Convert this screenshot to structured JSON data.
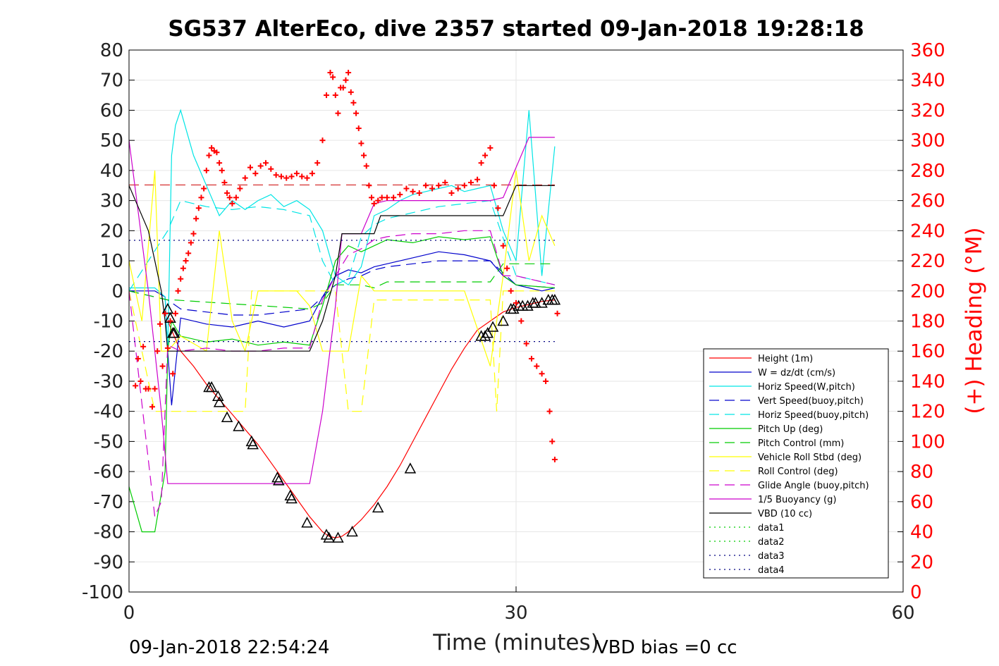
{
  "chart_data": {
    "type": "line",
    "title": "SG537 AlterEco, dive 2357 started 09-Jan-2018 19:28:18",
    "xlabel": "Time (minutes)",
    "ylabel": "",
    "ylabel_right": "(+) Heading (°M)",
    "xlim": [
      0,
      60
    ],
    "ylim": [
      -100,
      80
    ],
    "ylim_right": [
      0,
      360
    ],
    "xticks": [
      "0",
      "30",
      "60"
    ],
    "yticks": [
      "80",
      "70",
      "60",
      "50",
      "40",
      "30",
      "20",
      "10",
      "0",
      "-10",
      "-20",
      "-30",
      "-40",
      "-50",
      "-60",
      "-70",
      "-80",
      "-90",
      "-100"
    ],
    "yticks_right": [
      "360",
      "340",
      "320",
      "300",
      "280",
      "260",
      "240",
      "220",
      "200",
      "180",
      "160",
      "140",
      "120",
      "100",
      "80",
      "60",
      "40",
      "20",
      "0"
    ],
    "grid": true,
    "legend_position": "lower-right",
    "footer_left": "09-Jan-2018 22:54:24",
    "footer_right": "VBD bias =0 cc",
    "colors": {
      "height": "#ff0000",
      "w": "#0000cc",
      "horiz_speed": "#00e5e5",
      "pitch": "#00cc00",
      "roll": "#ffff00",
      "glide": "#cc00cc",
      "buoyancy": "#cc00cc",
      "vbd": "#000000",
      "heading": "#ff0000"
    },
    "series": [
      {
        "name": "Height (1m)",
        "color": "#ff0000",
        "dash": "solid",
        "x": [
          3.0,
          3.5,
          4,
          5,
          6,
          7,
          8,
          9,
          10,
          11,
          12,
          13,
          14,
          15,
          15.5,
          16,
          16.5,
          17,
          18,
          19,
          20,
          21,
          22,
          23,
          24,
          25,
          26,
          27,
          28,
          29,
          30,
          31,
          32,
          33
        ],
        "y": [
          -10,
          -15,
          -20,
          -25,
          -31,
          -36,
          -41,
          -46,
          -51,
          -57,
          -63,
          -69,
          -75,
          -80,
          -81.5,
          -82,
          -81.5,
          -80,
          -76,
          -71,
          -65,
          -58,
          -50,
          -42,
          -34,
          -26,
          -19,
          -13,
          -10,
          -7,
          -5.5,
          -4.5,
          -3.5,
          -3
        ]
      },
      {
        "name": "W = dz/dt (cm/s)",
        "color": "#0000cc",
        "dash": "solid",
        "x": [
          0,
          2,
          2.8,
          3,
          3.3,
          4,
          6,
          8,
          10,
          12,
          14,
          15,
          16,
          17,
          18,
          19,
          20,
          22,
          24,
          26,
          28,
          29,
          30,
          31,
          32,
          33
        ],
        "y": [
          0,
          0,
          -2,
          -20,
          -38,
          -9,
          -11,
          -12,
          -10,
          -12,
          -10,
          -2,
          5,
          7,
          6,
          8,
          9,
          11,
          13,
          12,
          10,
          5,
          2,
          1,
          0,
          1
        ]
      },
      {
        "name": "Horiz Speed(W,pitch)",
        "color": "#00e5e5",
        "dash": "solid",
        "x": [
          0,
          2,
          2.8,
          3,
          3.3,
          3.6,
          4,
          5,
          6,
          7,
          8,
          9,
          10,
          11,
          12,
          13,
          14,
          15,
          16,
          17,
          18,
          19,
          20,
          21,
          22,
          23,
          24,
          25,
          26,
          27,
          28,
          29,
          30,
          31,
          32,
          33
        ],
        "y": [
          1,
          1,
          -2,
          -20,
          45,
          55,
          60,
          45,
          35,
          25,
          30,
          27,
          30,
          32,
          28,
          30,
          27,
          20,
          5,
          2,
          8,
          25,
          27,
          30,
          32,
          33,
          34,
          35,
          33,
          34,
          35,
          20,
          10,
          60,
          5,
          48
        ]
      },
      {
        "name": "Vert Speed(buoy,pitch)",
        "color": "#0000cc",
        "dash": "dashed",
        "x": [
          0,
          3,
          4,
          6,
          8,
          10,
          12,
          14,
          15,
          16,
          17,
          18,
          19,
          20,
          22,
          24,
          26,
          28,
          30,
          33
        ],
        "y": [
          0,
          -3,
          -6,
          -7,
          -8,
          -8,
          -7,
          -6,
          -2,
          2,
          4,
          5,
          7,
          8,
          9,
          10,
          10,
          10,
          2,
          1
        ]
      },
      {
        "name": "Horiz Speed(buoy,pitch)",
        "color": "#00e5e5",
        "dash": "dashed",
        "x": [
          0,
          3,
          4,
          6,
          8,
          10,
          12,
          14,
          15,
          16,
          17,
          18,
          19,
          20,
          22,
          24,
          26,
          28,
          30,
          33
        ],
        "y": [
          0,
          20,
          30,
          28,
          27,
          28,
          27,
          25,
          10,
          2,
          4,
          18,
          22,
          24,
          26,
          28,
          29,
          30,
          5,
          2
        ]
      },
      {
        "name": "Pitch Up (deg)",
        "color": "#00cc00",
        "dash": "solid",
        "x": [
          0,
          1,
          2,
          2.8,
          3,
          3.3,
          4,
          6,
          8,
          10,
          12,
          14,
          15,
          16,
          17,
          18,
          19,
          20,
          22,
          24,
          26,
          28,
          29,
          30,
          33
        ],
        "y": [
          -65,
          -80,
          -80,
          -60,
          -20,
          -10,
          -15,
          -17,
          -16,
          -18,
          -17,
          -18,
          -5,
          10,
          15,
          13,
          15,
          17,
          16,
          18,
          17,
          18,
          5,
          2,
          1
        ]
      },
      {
        "name": "Pitch Control (mm)",
        "color": "#00cc00",
        "dash": "dashed",
        "x": [
          0,
          3,
          3.5,
          14,
          15,
          16,
          18,
          19,
          20,
          28,
          29,
          30,
          33
        ],
        "y": [
          0,
          -3,
          -3,
          -6,
          -4,
          2,
          2,
          1,
          3,
          3,
          9,
          9,
          9
        ]
      },
      {
        "name": "Vehicle Roll Stbd (deg)",
        "color": "#ffff00",
        "dash": "solid",
        "x": [
          0,
          1,
          2,
          2.5,
          3,
          4,
          6,
          7,
          8,
          9,
          10,
          11,
          12,
          13,
          14,
          15,
          16,
          17,
          18,
          19,
          20,
          22,
          24,
          26,
          28,
          29,
          30,
          31,
          32,
          33
        ],
        "y": [
          10,
          -10,
          40,
          -20,
          -20,
          -15,
          -20,
          20,
          -10,
          -20,
          0,
          0,
          0,
          0,
          -5,
          -20,
          -20,
          -20,
          5,
          0,
          0,
          0,
          0,
          0,
          -25,
          5,
          40,
          10,
          25,
          15
        ]
      },
      {
        "name": "Roll Control (deg)",
        "color": "#ffff00",
        "dash": "dashed",
        "x": [
          0,
          2,
          3,
          4,
          8,
          9,
          9.5,
          10,
          14,
          16,
          17,
          17.5,
          18,
          19,
          28,
          28.5,
          29,
          30,
          33
        ],
        "y": [
          0,
          -40,
          -40,
          -40,
          -40,
          -40,
          0,
          0,
          0,
          0,
          -40,
          -40,
          -40,
          -3,
          -3,
          -40,
          0,
          0,
          0
        ]
      },
      {
        "name": "Glide Angle (buoy,pitch)",
        "color": "#cc00cc",
        "dash": "dashed",
        "x": [
          0,
          2,
          2.5,
          3,
          4,
          6,
          8,
          10,
          12,
          14,
          15,
          16,
          17,
          18,
          19,
          20,
          22,
          24,
          26,
          28,
          29,
          30,
          33
        ],
        "y": [
          0,
          -75,
          -70,
          -18,
          -20,
          -19,
          -20,
          -20,
          -19,
          -19,
          -3,
          5,
          12,
          14,
          17,
          18,
          19,
          19,
          20,
          20,
          5,
          5,
          2
        ]
      },
      {
        "name": "1/5 Buoyancy (g)",
        "color": "#cc00cc",
        "dash": "solid",
        "x": [
          0,
          1.5,
          2.5,
          3.0,
          13.5,
          14,
          15,
          16,
          16.5,
          18,
          19,
          20,
          28,
          29,
          30,
          31,
          33
        ],
        "y": [
          50,
          0,
          -40,
          -64,
          -64,
          -64,
          -40,
          -5,
          19,
          19,
          29,
          30,
          30,
          31,
          41,
          51,
          51
        ]
      },
      {
        "name": "VBD (10 cc)",
        "color": "#000000",
        "dash": "solid",
        "x": [
          0,
          1.5,
          2.5,
          2.8,
          3.0,
          14,
          15,
          16,
          16.5,
          18,
          19,
          19.5,
          20,
          28,
          29,
          30,
          33
        ],
        "y": [
          35,
          20,
          0,
          -10,
          -20,
          -20,
          -10,
          5,
          19,
          19,
          19,
          25,
          25,
          25,
          25,
          35,
          35
        ]
      },
      {
        "name": "data1",
        "color": "#00cc00",
        "dash": "dotted",
        "x": [],
        "y": []
      },
      {
        "name": "data2",
        "color": "#00cc00",
        "dash": "dotted",
        "x": [],
        "y": []
      },
      {
        "name": "data3",
        "color": "#000080",
        "dash": "dotted",
        "x": [
          0,
          33
        ],
        "y": [
          16.8,
          16.8
        ]
      },
      {
        "name": "data4",
        "color": "#000080",
        "dash": "dotted",
        "x": [
          0,
          33
        ],
        "y": [
          -16.8,
          -16.8
        ]
      }
    ],
    "reference_lines": [
      {
        "y": 35.2,
        "color": "#cc0000",
        "dash": "dashed",
        "x": [
          0,
          33
        ]
      }
    ],
    "triangle_markers": {
      "x": [
        3.0,
        3.2,
        3.4,
        3.5,
        6.2,
        6.4,
        6.9,
        7.0,
        7.6,
        8.5,
        9.5,
        9.6,
        11.5,
        11.6,
        12.5,
        12.6,
        13.8,
        15.3,
        15.5,
        16.2,
        17.3,
        19.3,
        21.8,
        27.3,
        27.6,
        27.8,
        28.2,
        29.0,
        29.6,
        29.8,
        30.2,
        30.5,
        30.9,
        31.3,
        31.5,
        32.0,
        32.5,
        32.8,
        33.0
      ],
      "y": [
        -6,
        -9,
        -14,
        -14,
        -32,
        -32,
        -35,
        -37,
        -42,
        -45,
        -50,
        -51,
        -62,
        -63,
        -68,
        -69,
        -77,
        -81,
        -82,
        -82,
        -80,
        -72,
        -59,
        -15,
        -15,
        -14,
        -12,
        -10,
        -6,
        -6,
        -5,
        -5,
        -5,
        -4,
        -4,
        -4,
        -3,
        -3,
        -3
      ]
    },
    "heading_points_deg": {
      "x": [
        0.5,
        0.7,
        0.9,
        1.1,
        1.3,
        1.5,
        1.8,
        2.0,
        2.2,
        2.4,
        2.6,
        2.8,
        3.0,
        3.2,
        3.4,
        3.6,
        3.8,
        4.0,
        4.2,
        4.4,
        4.6,
        4.8,
        5.0,
        5.2,
        5.4,
        5.6,
        5.8,
        6.0,
        6.2,
        6.4,
        6.6,
        6.8,
        7.0,
        7.2,
        7.4,
        7.6,
        7.8,
        8.0,
        8.3,
        8.6,
        9.0,
        9.4,
        9.8,
        10.2,
        10.6,
        11.0,
        11.4,
        11.8,
        12.2,
        12.6,
        13.0,
        13.4,
        13.8,
        14.2,
        14.6,
        15.0,
        15.3,
        15.6,
        15.8,
        16.0,
        16.2,
        16.4,
        16.6,
        16.8,
        17.0,
        17.2,
        17.4,
        17.6,
        17.8,
        18.0,
        18.2,
        18.4,
        18.6,
        18.8,
        19.0,
        19.3,
        19.6,
        20.0,
        20.5,
        21.0,
        21.5,
        22.0,
        22.5,
        23.0,
        23.5,
        24.0,
        24.5,
        25.0,
        25.5,
        26.0,
        26.5,
        27.0,
        27.3,
        27.6,
        28.0,
        28.3,
        28.6,
        29.0,
        29.3,
        29.6,
        30.0,
        30.4,
        30.8,
        31.2,
        31.6,
        32.0,
        32.3,
        32.6,
        32.8,
        33.0,
        33.2
      ],
      "y": [
        137,
        155,
        140,
        163,
        135,
        135,
        123,
        135,
        160,
        178,
        150,
        185,
        162,
        180,
        145,
        185,
        200,
        208,
        215,
        220,
        225,
        232,
        238,
        248,
        255,
        262,
        268,
        280,
        290,
        295,
        293,
        292,
        285,
        280,
        272,
        265,
        262,
        258,
        262,
        268,
        275,
        282,
        278,
        283,
        285,
        281,
        277,
        276,
        275,
        276,
        278,
        276,
        275,
        278,
        285,
        300,
        330,
        345,
        342,
        330,
        318,
        335,
        335,
        340,
        345,
        332,
        325,
        318,
        308,
        298,
        290,
        283,
        270,
        262,
        258,
        260,
        262,
        262,
        262,
        264,
        268,
        266,
        265,
        270,
        268,
        270,
        272,
        265,
        268,
        270,
        272,
        274,
        285,
        290,
        295,
        270,
        255,
        230,
        215,
        200,
        192,
        180,
        165,
        155,
        150,
        145,
        140,
        120,
        100,
        88,
        185
      ]
    }
  }
}
